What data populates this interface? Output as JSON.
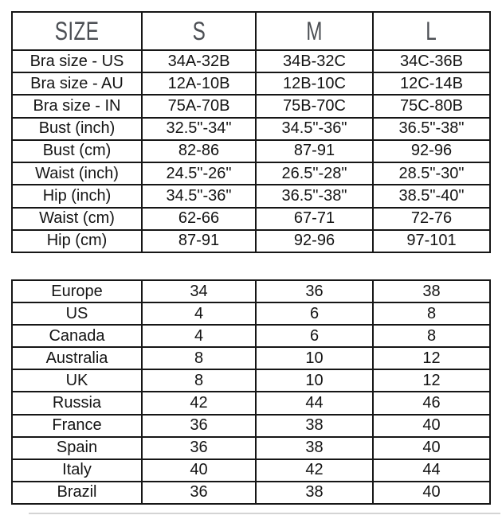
{
  "colors": {
    "border": "#161616",
    "body_text": "#141414",
    "header_text": "#4c4f54",
    "cutoff_line": "#c9c9c9",
    "background": "#ffffff"
  },
  "chart_data": [
    {
      "type": "table",
      "title": "SIZE",
      "columns": [
        "S",
        "M",
        "L"
      ],
      "rows": [
        {
          "label": "Bra size - US",
          "values": [
            "34A-32B",
            "34B-32C",
            "34C-36B"
          ]
        },
        {
          "label": "Bra size - AU",
          "values": [
            "12A-10B",
            "12B-10C",
            "12C-14B"
          ]
        },
        {
          "label": "Bra size - IN",
          "values": [
            "75A-70B",
            "75B-70C",
            "75C-80B"
          ]
        },
        {
          "label": "Bust (inch)",
          "values": [
            "32.5\"-34\"",
            "34.5\"-36\"",
            "36.5\"-38\""
          ]
        },
        {
          "label": "Bust (cm)",
          "values": [
            "82-86",
            "87-91",
            "92-96"
          ]
        },
        {
          "label": "Waist (inch)",
          "values": [
            "24.5\"-26\"",
            "26.5\"-28\"",
            "28.5\"-30\""
          ]
        },
        {
          "label": "Hip (inch)",
          "values": [
            "34.5\"-36\"",
            "36.5\"-38\"",
            "38.5\"-40\""
          ]
        },
        {
          "label": "Waist (cm)",
          "values": [
            "62-66",
            "67-71",
            "72-76"
          ]
        },
        {
          "label": "Hip (cm)",
          "values": [
            "87-91",
            "92-96",
            "97-101"
          ]
        }
      ]
    },
    {
      "type": "table",
      "title": "",
      "columns": [
        "S",
        "M",
        "L"
      ],
      "rows": [
        {
          "label": "Europe",
          "values": [
            "34",
            "36",
            "38"
          ]
        },
        {
          "label": "US",
          "values": [
            "4",
            "6",
            "8"
          ]
        },
        {
          "label": "Canada",
          "values": [
            "4",
            "6",
            "8"
          ]
        },
        {
          "label": "Australia",
          "values": [
            "8",
            "10",
            "12"
          ]
        },
        {
          "label": "UK",
          "values": [
            "8",
            "10",
            "12"
          ]
        },
        {
          "label": "Russia",
          "values": [
            "42",
            "44",
            "46"
          ]
        },
        {
          "label": "France",
          "values": [
            "36",
            "38",
            "40"
          ]
        },
        {
          "label": "Spain",
          "values": [
            "36",
            "38",
            "40"
          ]
        },
        {
          "label": "Italy",
          "values": [
            "40",
            "42",
            "44"
          ]
        },
        {
          "label": "Brazil",
          "values": [
            "36",
            "38",
            "40"
          ]
        }
      ]
    }
  ]
}
